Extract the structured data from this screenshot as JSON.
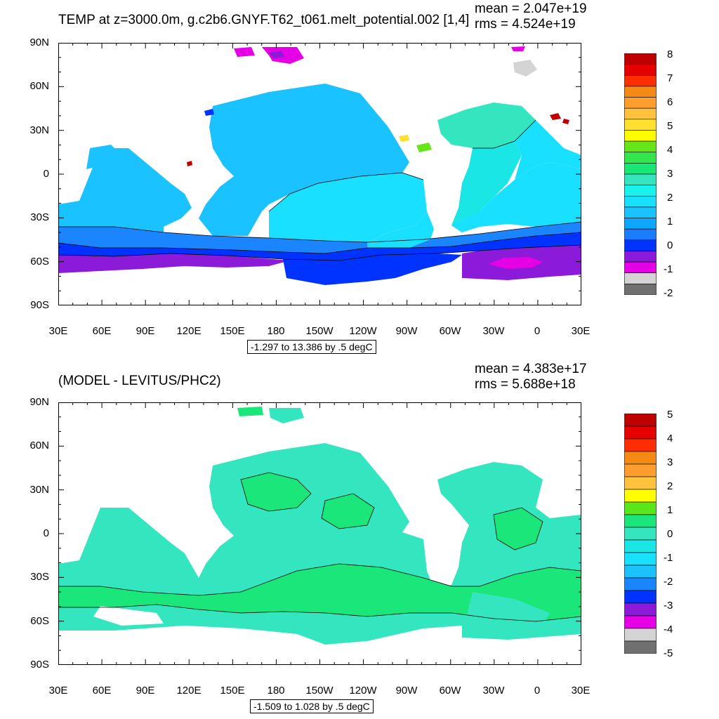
{
  "panels": [
    {
      "title": "TEMP at z=3000.0m, g.c2b6.GNYF.T62_t061.melt_potential.002 [1,4]",
      "mean_text": "mean = 2.047e+19",
      "rms_text": "rms = 4.524e+19",
      "info_text": "-1.297 to 13.386 by .5 degC",
      "lat_ticks": [
        "90N",
        "60N",
        "30N",
        "0",
        "30S",
        "60S",
        "90S"
      ],
      "lon_ticks": [
        "30E",
        "60E",
        "90E",
        "120E",
        "150E",
        "180",
        "150W",
        "120W",
        "90W",
        "60W",
        "30W",
        "0",
        "30E"
      ],
      "colorbar": {
        "labels": [
          "8",
          "7",
          "6",
          "5",
          "4",
          "3",
          "2",
          "1",
          "0",
          "-1",
          "-2"
        ],
        "colors": [
          "#bf0000",
          "#e60000",
          "#ff2e00",
          "#f28a14",
          "#ff9e2e",
          "#ffc23d",
          "#ffe02e",
          "#ffff00",
          "#66e61a",
          "#33e64d",
          "#1ae673",
          "#33e6bf",
          "#1af2ee",
          "#1ae0ff",
          "#1ac2ff",
          "#0fa6ff",
          "#1a7dff",
          "#0033ff",
          "#8c1ad9",
          "#e600e6",
          "#d4d4d4",
          "#707070"
        ]
      }
    },
    {
      "title": "(MODEL - LEVITUS/PHC2)",
      "mean_text": "mean = 4.383e+17",
      "rms_text": "rms = 5.688e+18",
      "info_text": "-1.509 to 1.028 by .5 degC",
      "lat_ticks": [
        "90N",
        "60N",
        "30N",
        "0",
        "30S",
        "60S",
        "90S"
      ],
      "lon_ticks": [
        "30E",
        "60E",
        "90E",
        "120E",
        "150E",
        "180",
        "150W",
        "120W",
        "90W",
        "60W",
        "30W",
        "0",
        "30E"
      ],
      "colorbar": {
        "labels": [
          "5",
          "4",
          "3",
          "2",
          "1",
          "0",
          "-1",
          "-2",
          "-3",
          "-4",
          "-5"
        ],
        "colors": [
          "#bf0000",
          "#e60000",
          "#ff2e00",
          "#f28a14",
          "#ff9e2e",
          "#ffc23d",
          "#ffff00",
          "#5ae61a",
          "#1ae67a",
          "#33e6bf",
          "#1ae6e6",
          "#1ae0ff",
          "#1ac2ff",
          "#1a85ff",
          "#0033ff",
          "#8c1ad9",
          "#e600e6",
          "#d4d4d4",
          "#707070"
        ]
      }
    }
  ],
  "chart_data": [
    {
      "type": "heatmap",
      "title": "TEMP at z=3000.0m, g.c2b6.GNYF.T62_t061.melt_potential.002 [1,4]",
      "xlabel": "",
      "ylabel": "",
      "x_range": [
        30,
        390
      ],
      "y_range": [
        -90,
        90
      ],
      "contour_interval": 0.5,
      "units": "degC",
      "min": -1.297,
      "max": 13.386,
      "mean": 2.047e+19,
      "rms": 4.524e+19,
      "colorbar_range": [
        -2,
        8
      ]
    },
    {
      "type": "heatmap",
      "title": "(MODEL - LEVITUS/PHC2)",
      "xlabel": "",
      "ylabel": "",
      "x_range": [
        30,
        390
      ],
      "y_range": [
        -90,
        90
      ],
      "contour_interval": 0.5,
      "units": "degC",
      "min": -1.509,
      "max": 1.028,
      "mean": 4.383e+17,
      "rms": 5.688e+18,
      "colorbar_range": [
        -5,
        5
      ]
    }
  ]
}
